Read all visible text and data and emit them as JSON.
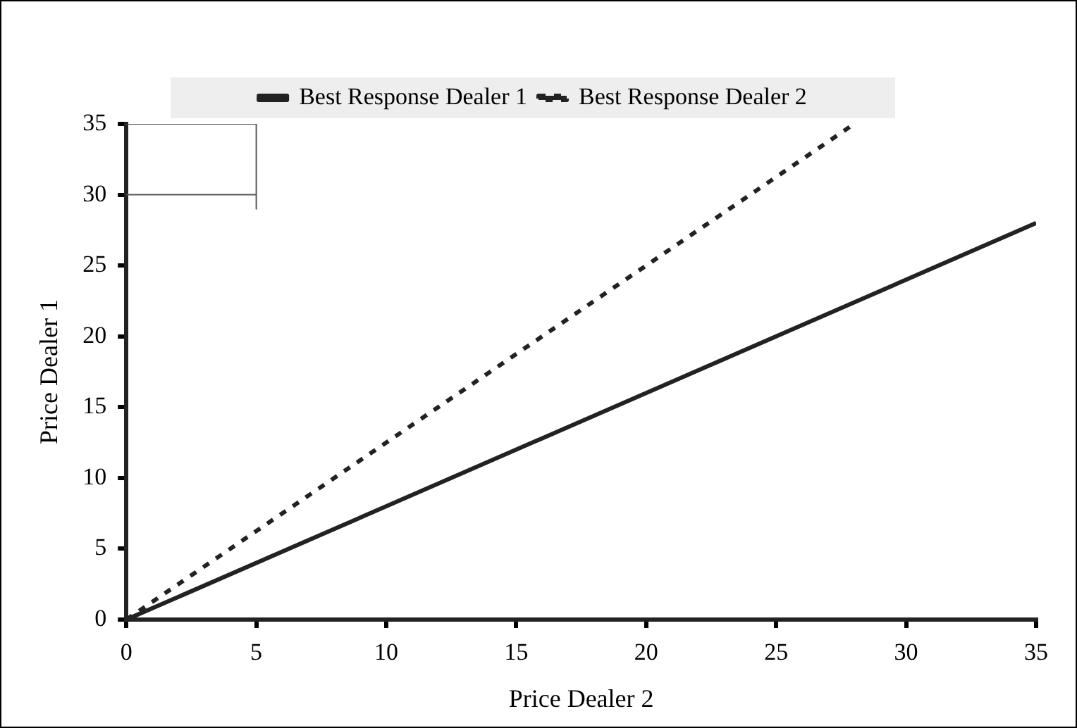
{
  "chart_data": {
    "type": "line",
    "xlabel": "Price Dealer 2",
    "ylabel": "Price Dealer 1",
    "xlim": [
      0,
      35
    ],
    "ylim": [
      0,
      35
    ],
    "xticks": [
      0,
      5,
      10,
      15,
      20,
      25,
      30,
      35
    ],
    "yticks": [
      0,
      5,
      10,
      15,
      20,
      25,
      30,
      35
    ],
    "grid": false,
    "legend": "top",
    "marker": "none",
    "series": [
      {
        "name": "Best Response Dealer 1",
        "color": "#222222",
        "x": [
          0,
          35
        ],
        "values": [
          0,
          28
        ],
        "line_style": "solid"
      },
      {
        "name": "Best Response Dealer 2",
        "color": "#222222",
        "x": [
          0,
          28
        ],
        "values": [
          0,
          35
        ],
        "line_style": "dotted"
      },
      {
        "color": "#555555",
        "x": [
          0,
          5,
          5
        ],
        "values": [
          35,
          35,
          29
        ],
        "line_style": "solid"
      },
      {
        "color": "#555555",
        "x": [
          0,
          5
        ],
        "values": [
          30,
          30
        ],
        "line_style": "solid"
      }
    ]
  }
}
